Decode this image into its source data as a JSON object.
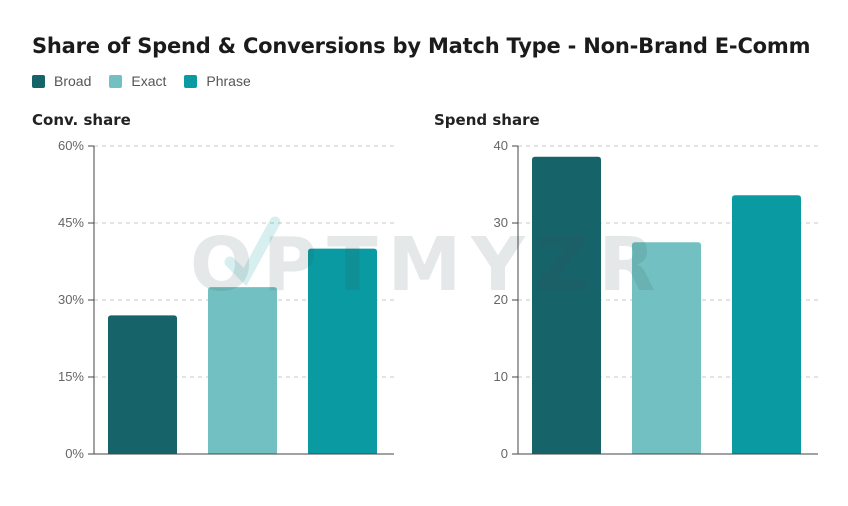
{
  "title": "Share of Spend & Conversions by Match Type - Non-Brand E-Comm",
  "legend": [
    {
      "label": "Broad",
      "color": "#17636a"
    },
    {
      "label": "Exact",
      "color": "#73c0c2"
    },
    {
      "label": "Phrase",
      "color": "#0a9aa1"
    }
  ],
  "watermark": "OPTMYZR",
  "chart_data": [
    {
      "type": "bar",
      "title": "Conv. share",
      "categories": [
        "Broad",
        "Exact",
        "Phrase"
      ],
      "values": [
        27,
        32.5,
        40
      ],
      "colors": [
        "#17636a",
        "#73c0c2",
        "#0a9aa1"
      ],
      "ylim": [
        0,
        60
      ],
      "yticks": [
        0,
        15,
        30,
        45,
        60
      ],
      "ytick_labels": [
        "0%",
        "15%",
        "30%",
        "45%",
        "60%"
      ],
      "grid": true
    },
    {
      "type": "bar",
      "title": "Spend share",
      "categories": [
        "Broad",
        "Exact",
        "Phrase"
      ],
      "values": [
        38.6,
        27.5,
        33.6
      ],
      "colors": [
        "#17636a",
        "#73c0c2",
        "#0a9aa1"
      ],
      "ylim": [
        0,
        40
      ],
      "yticks": [
        0,
        10,
        20,
        30,
        40
      ],
      "ytick_labels": [
        "0",
        "10",
        "20",
        "30",
        "40"
      ],
      "grid": true
    }
  ]
}
